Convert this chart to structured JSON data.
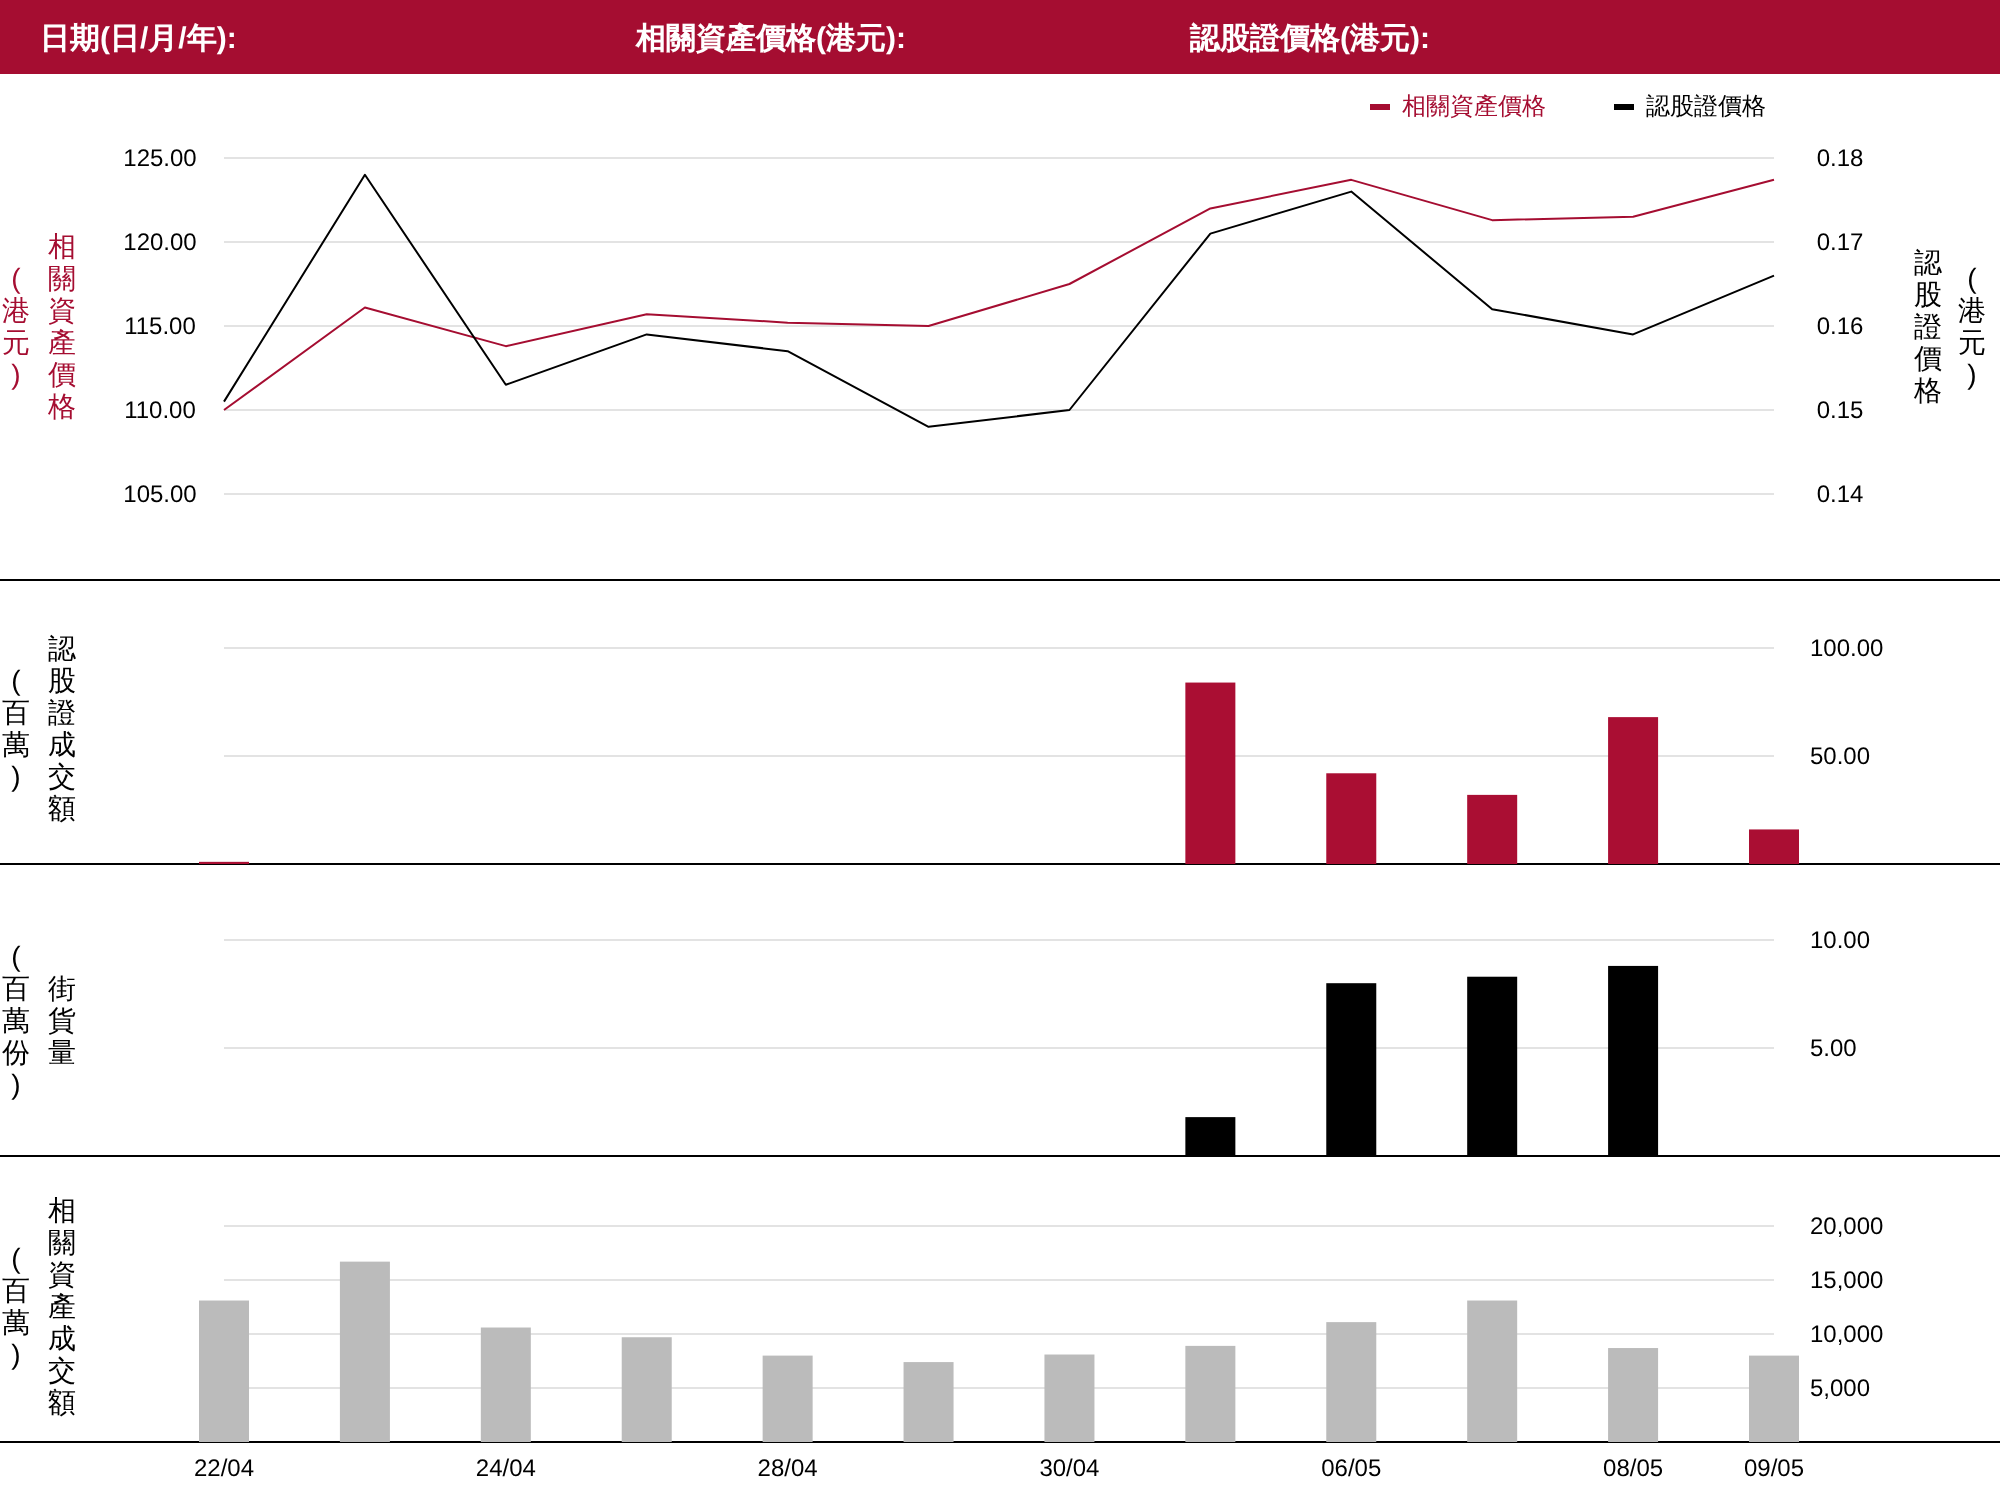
{
  "chart_data": [
    {
      "type": "line",
      "annotations": [
        "日期(日/月/年):",
        "相關資產價格(港元):",
        "認股證價格(港元):"
      ],
      "categories": [
        null,
        null,
        null,
        null,
        null,
        null,
        null,
        null,
        null,
        null,
        null,
        null
      ],
      "series": [
        {
          "name": "相關資產價格",
          "color": "#a50d31",
          "values": [
            110.0,
            116.1,
            113.8,
            115.7,
            115.2,
            115.0,
            117.5,
            122.0,
            123.7,
            121.3,
            121.5,
            123.7
          ]
        },
        {
          "name": "認股證價格",
          "color": "#000000",
          "axis": "y2",
          "values": [
            0.151,
            0.178,
            0.153,
            0.159,
            0.157,
            0.148,
            0.15,
            0.171,
            0.176,
            0.162,
            0.159,
            0.166
          ]
        }
      ],
      "ylabel": "相關資產價格(港元)",
      "y2label": "認股證價格(港元)",
      "ylim": [
        105,
        125
      ],
      "yticks": [
        {
          "value": 105,
          "label": "105.00"
        },
        {
          "value": 110,
          "label": "110.00"
        },
        {
          "value": 115,
          "label": "115.00"
        },
        {
          "value": 120,
          "label": "120.00"
        },
        {
          "value": 125,
          "label": "125.00"
        }
      ],
      "y2lim": [
        0.14,
        0.18
      ],
      "y2ticks": [
        0.14,
        0.15,
        0.16,
        0.17,
        0.18
      ],
      "grid": "y",
      "legend": "top right",
      "tick_labels": "y",
      "marker": "none",
      "line_style": "solid"
    },
    {
      "type": "bar",
      "categories": [
        null,
        null,
        null,
        null,
        null,
        null,
        null,
        null,
        null,
        null,
        null,
        null
      ],
      "values": [
        1,
        null,
        null,
        null,
        null,
        null,
        null,
        84,
        42,
        32,
        68,
        16
      ],
      "color": "#aa0e33",
      "ylabel": "認股證成交額(百萬)",
      "ylim": [
        0,
        100
      ],
      "yticks": [
        {
          "value": 50,
          "label": "50.00"
        },
        {
          "value": 100,
          "label": "100.00"
        }
      ],
      "grid": "y",
      "tick_labels": "y"
    },
    {
      "type": "bar",
      "categories": [
        null,
        null,
        null,
        null,
        null,
        null,
        null,
        null,
        null,
        null,
        null,
        null
      ],
      "values": [
        null,
        null,
        null,
        null,
        null,
        null,
        null,
        1.8,
        8.0,
        8.3,
        8.8,
        null
      ],
      "color": "#000000",
      "ylabel": "街貨量(百萬份)",
      "ylim": [
        0,
        10
      ],
      "yticks": [
        {
          "value": 5,
          "label": "5.00"
        },
        {
          "value": 10,
          "label": "10.00"
        }
      ],
      "grid": "y",
      "tick_labels": "y"
    },
    {
      "type": "bar",
      "categories": [
        "22/04",
        null,
        "24/04",
        null,
        "28/04",
        null,
        "30/04",
        null,
        "06/05",
        null,
        "08/05",
        "09/05"
      ],
      "values": [
        13100,
        16700,
        10600,
        9700,
        8000,
        7400,
        8100,
        8900,
        11100,
        13100,
        8700,
        8000
      ],
      "color": "#bbbbbb",
      "ylabel": "相關資產成交額(百萬)",
      "ylim": [
        0,
        20000
      ],
      "yticks": [
        {
          "value": 5000,
          "label": "5,000"
        },
        {
          "value": 10000,
          "label": "10,000"
        },
        {
          "value": 15000,
          "label": "15,000"
        },
        {
          "value": 20000,
          "label": "20,000"
        }
      ],
      "grid": "y"
    }
  ]
}
